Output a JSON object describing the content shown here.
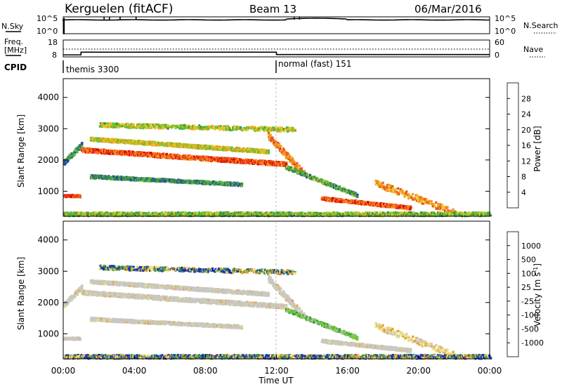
{
  "header": {
    "station": "Kerguelen (fitACF)",
    "beam": "Beam 13",
    "date": "06/Mar/2016"
  },
  "panels": {
    "nsky": {
      "left_label": "N.Sky",
      "right_label": "N.Search",
      "tick_top": "10^5",
      "tick_bottom": "10^0"
    },
    "freq": {
      "left_label_line1": "Freq.",
      "left_label_line2": "[MHz]",
      "right_label": "Nave",
      "left_ticks": [
        "18",
        "8"
      ],
      "right_ticks": [
        "60",
        "0"
      ],
      "freq_steps": [
        {
          "t": 0.0,
          "f": 9.2
        },
        {
          "t": 1.0,
          "f": 10.8
        },
        {
          "t": 12.0,
          "f": 9.4
        },
        {
          "t": 24.0,
          "f": 9.4
        }
      ],
      "nave_level": 12.6
    },
    "cpid": {
      "label": "CPID",
      "segments": [
        {
          "start": 0,
          "label": "themis 3300"
        },
        {
          "start": 12,
          "label": "normal (fast) 151"
        }
      ]
    }
  },
  "chart_data": [
    {
      "type": "heatmap",
      "quantity": "Power",
      "ylabel": "Slant Range [km]",
      "ylim": [
        200,
        4600
      ],
      "yticks": [
        "1000",
        "2000",
        "3000",
        "4000"
      ],
      "xlim": [
        0,
        24
      ],
      "colorbar_label": "Power [dB]",
      "colorbar_ticks": [
        "4",
        "8",
        "12",
        "16",
        "20",
        "24",
        "28"
      ],
      "colorbar_colors": [
        "#0a1aff",
        "#2244aa",
        "#3d8a4a",
        "#5cbf3a",
        "#e6c81e",
        "#f59a1e",
        "#ee5522",
        "#dd0000"
      ]
    },
    {
      "type": "heatmap",
      "quantity": "Velocity",
      "ylabel": "Slant Range [km]",
      "ylim": [
        200,
        4600
      ],
      "yticks": [
        "1000",
        "2000",
        "3000",
        "4000"
      ],
      "xlim": [
        0,
        24
      ],
      "xlabel": "Time UT",
      "xticks": [
        "00:00",
        "04:00",
        "08:00",
        "12:00",
        "16:00",
        "20:00",
        "00:00"
      ],
      "colorbar_label": "Velocity [m s",
      "colorbar_label_sup": "-1",
      "colorbar_label_end": "]",
      "colorbar_ticks": [
        "1000",
        "500",
        "100",
        "25",
        "-25",
        "-100",
        "-500",
        "-1000"
      ],
      "colorbar_colors": [
        "#1133bb",
        "#2a7a8a",
        "#3a9a4a",
        "#7ccc3a",
        "#c8c8c0",
        "#f0e07a",
        "#f59a1e",
        "#f06020",
        "#e80000"
      ]
    }
  ]
}
